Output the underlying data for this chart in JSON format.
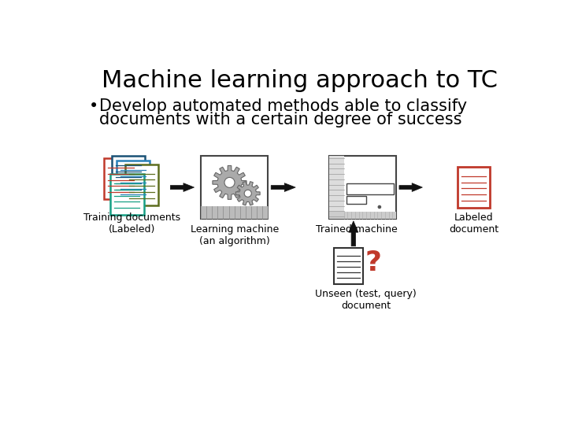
{
  "title": "Machine learning approach to TC",
  "bullet_line1": "Develop automated methods able to classify",
  "bullet_line2": "documents with a certain degree of success",
  "label_training": "Training documents\n(Labeled)",
  "label_learning": "Learning machine\n(an algorithm)",
  "label_trained": "Trained machine",
  "label_labeled_doc": "Labeled\ndocument",
  "label_unseen": "Unseen (test, query)\ndocument",
  "bg_color": "#ffffff",
  "title_fontsize": 22,
  "bullet_fontsize": 15,
  "label_fontsize": 9,
  "title_color": "#000000",
  "bullet_color": "#000000",
  "label_color": "#000000",
  "arrow_color": "#111111",
  "doc_red": "#c0392b",
  "doc_blue": "#2980b9",
  "doc_darkblue": "#1a5276",
  "doc_olive": "#5d6d1e",
  "doc_teal": "#16a085",
  "gear_color": "#aaaaaa",
  "gear_dark": "#666666",
  "machine_border": "#444444",
  "labeled_doc_border": "#c0392b",
  "question_mark_color": "#c0392b"
}
